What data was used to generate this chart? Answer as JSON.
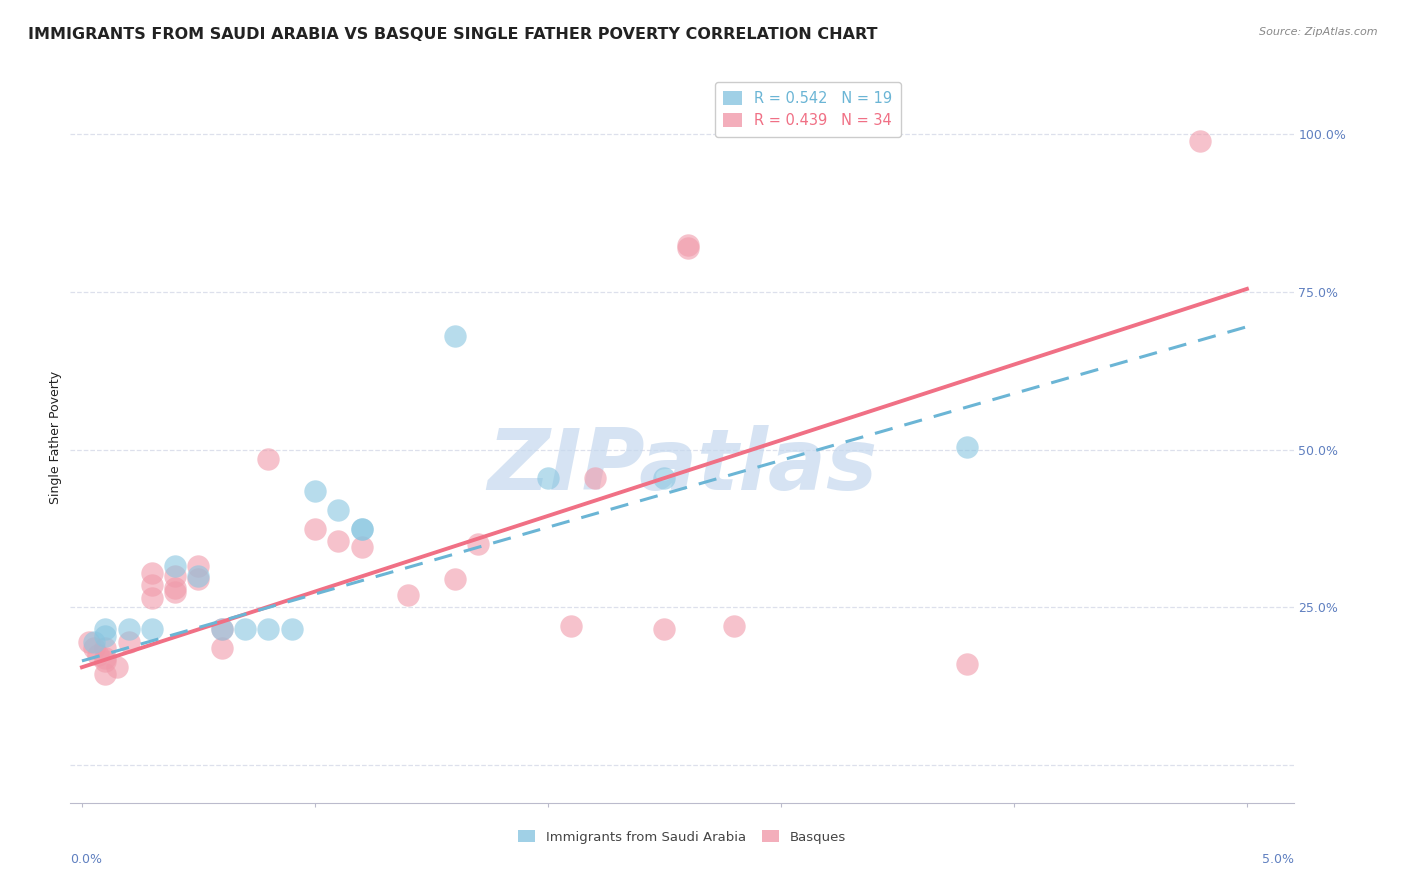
{
  "title": "IMMIGRANTS FROM SAUDI ARABIA VS BASQUE SINGLE FATHER POVERTY CORRELATION CHART",
  "source": "Source: ZipAtlas.com",
  "ylabel": "Single Father Poverty",
  "legend_entries": [
    {
      "label": "R = 0.542   N = 19",
      "color": "#7ab8d4"
    },
    {
      "label": "R = 0.439   N = 34",
      "color": "#f09aaa"
    }
  ],
  "legend_labels_bottom": [
    "Immigrants from Saudi Arabia",
    "Basques"
  ],
  "blue_scatter": [
    [
      0.0005,
      0.195
    ],
    [
      0.001,
      0.215
    ],
    [
      0.001,
      0.205
    ],
    [
      0.002,
      0.215
    ],
    [
      0.003,
      0.215
    ],
    [
      0.004,
      0.315
    ],
    [
      0.005,
      0.3
    ],
    [
      0.006,
      0.215
    ],
    [
      0.007,
      0.215
    ],
    [
      0.008,
      0.215
    ],
    [
      0.009,
      0.215
    ],
    [
      0.01,
      0.435
    ],
    [
      0.011,
      0.405
    ],
    [
      0.012,
      0.375
    ],
    [
      0.012,
      0.375
    ],
    [
      0.016,
      0.68
    ],
    [
      0.02,
      0.455
    ],
    [
      0.025,
      0.455
    ],
    [
      0.038,
      0.505
    ]
  ],
  "pink_scatter": [
    [
      0.0003,
      0.195
    ],
    [
      0.0005,
      0.185
    ],
    [
      0.0007,
      0.175
    ],
    [
      0.001,
      0.17
    ],
    [
      0.001,
      0.185
    ],
    [
      0.001,
      0.165
    ],
    [
      0.001,
      0.145
    ],
    [
      0.002,
      0.195
    ],
    [
      0.0015,
      0.155
    ],
    [
      0.003,
      0.305
    ],
    [
      0.003,
      0.285
    ],
    [
      0.003,
      0.265
    ],
    [
      0.004,
      0.3
    ],
    [
      0.004,
      0.28
    ],
    [
      0.004,
      0.275
    ],
    [
      0.005,
      0.315
    ],
    [
      0.005,
      0.295
    ],
    [
      0.006,
      0.215
    ],
    [
      0.006,
      0.185
    ],
    [
      0.008,
      0.485
    ],
    [
      0.01,
      0.375
    ],
    [
      0.011,
      0.355
    ],
    [
      0.012,
      0.345
    ],
    [
      0.014,
      0.27
    ],
    [
      0.016,
      0.295
    ],
    [
      0.017,
      0.35
    ],
    [
      0.021,
      0.22
    ],
    [
      0.022,
      0.455
    ],
    [
      0.025,
      0.215
    ],
    [
      0.026,
      0.82
    ],
    [
      0.026,
      0.825
    ],
    [
      0.028,
      0.22
    ],
    [
      0.038,
      0.16
    ],
    [
      0.048,
      0.99
    ]
  ],
  "blue_line_x": [
    0.0,
    0.05
  ],
  "blue_line_y": [
    0.165,
    0.695
  ],
  "pink_line_x": [
    0.0,
    0.05
  ],
  "pink_line_y": [
    0.155,
    0.755
  ],
  "xlim": [
    -0.0005,
    0.052
  ],
  "ylim": [
    -0.06,
    1.1
  ],
  "xticks": [
    0.0,
    0.01,
    0.02,
    0.03,
    0.04,
    0.05
  ],
  "ytick_positions": [
    0.0,
    0.25,
    0.5,
    0.75,
    1.0
  ],
  "ytick_labels_right": [
    "",
    "25.0%",
    "50.0%",
    "75.0%",
    "100.0%"
  ],
  "blue_color": "#6bb5d5",
  "pink_color": "#f07085",
  "blue_scatter_color": "#88c5e0",
  "pink_scatter_color": "#f09aaa",
  "watermark_text": "ZIPatlas",
  "watermark_color": "#c5d8ee",
  "background_color": "#ffffff",
  "grid_color": "#dde0ec",
  "axis_color": "#6080c0",
  "title_color": "#222222",
  "title_fontsize": 11.5,
  "ylabel_fontsize": 9,
  "tick_label_fontsize": 9,
  "source_color": "#888888"
}
